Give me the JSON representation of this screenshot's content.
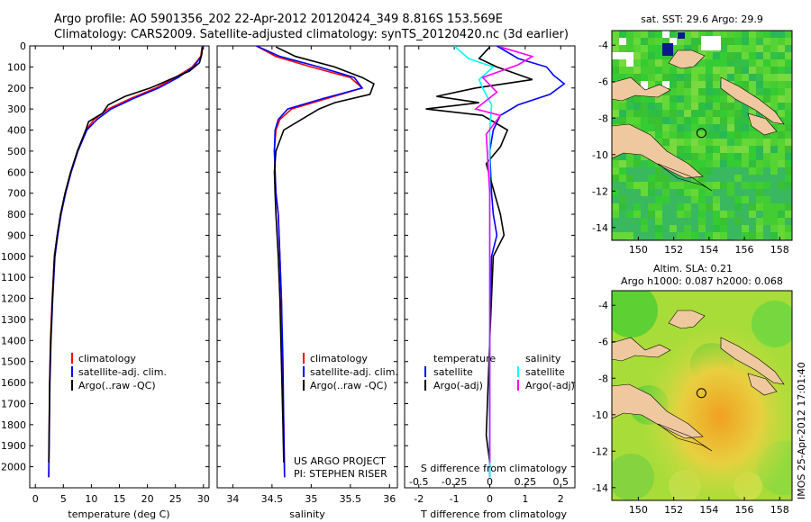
{
  "header": {
    "line1": "Argo profile: AO 5901356_202 22-Apr-2012 20120424_349 8.816S 153.569E",
    "line2": "Climatology: CARS2009. Satellite-adjusted climatology: synTS_20120420.nc (3d earlier)"
  },
  "colors": {
    "climatology": "#ff0000",
    "satellite": "#0000ff",
    "argo": "#000000",
    "sal_satellite": "#00ffff",
    "sal_argo": "#ff00ff",
    "land": "#f0c8a0",
    "ocean_green": "#33cc33"
  },
  "chart_data": [
    {
      "id": "temperature",
      "type": "line",
      "xlabel": "temperature (deg C)",
      "ylabel": "",
      "xlim": [
        -1,
        31
      ],
      "ylim": [
        2100,
        0
      ],
      "xticks": [
        "0",
        "5",
        "10",
        "15",
        "20",
        "25",
        "30"
      ],
      "xtick_values": [
        0,
        5,
        10,
        15,
        20,
        25,
        30
      ],
      "yticks": [
        "0",
        "100",
        "200",
        "300",
        "400",
        "500",
        "600",
        "700",
        "800",
        "900",
        "1000",
        "1100",
        "1200",
        "1300",
        "1400",
        "1500",
        "1600",
        "1700",
        "1800",
        "1900",
        "2000"
      ],
      "ytick_values": [
        0,
        100,
        200,
        300,
        400,
        500,
        600,
        700,
        800,
        900,
        1000,
        1100,
        1200,
        1300,
        1400,
        1500,
        1600,
        1700,
        1800,
        1900,
        2000
      ],
      "legend": [
        "climatology",
        "satellite-adj. clim.",
        "Argo(..raw -QC)"
      ],
      "series": [
        {
          "name": "climatology",
          "color": "#ff0000",
          "x": [
            29.8,
            29.5,
            28,
            25,
            21.5,
            17,
            13,
            10.5,
            9,
            7.5,
            6.3,
            5.3,
            4.5,
            3.9,
            3.4,
            3,
            2.7,
            2.55,
            2.4
          ],
          "y": [
            0,
            50,
            100,
            150,
            200,
            250,
            300,
            350,
            400,
            500,
            600,
            700,
            800,
            900,
            1000,
            1200,
            1400,
            1600,
            2050
          ]
        },
        {
          "name": "satellite-adj. clim.",
          "color": "#0000ff",
          "x": [
            29.9,
            29.6,
            28.2,
            25.5,
            22,
            17.5,
            13.5,
            11,
            9.2,
            7.6,
            6.4,
            5.4,
            4.6,
            4,
            3.5,
            3.1,
            2.8,
            2.6,
            2.4
          ],
          "y": [
            0,
            50,
            100,
            150,
            200,
            250,
            300,
            350,
            400,
            500,
            600,
            700,
            800,
            900,
            1000,
            1200,
            1400,
            1600,
            2050
          ]
        },
        {
          "name": "Argo(..raw -QC)",
          "color": "#000000",
          "x": [
            29.8,
            29.7,
            29.3,
            27.5,
            24,
            20.5,
            16,
            13,
            12,
            9.5,
            9,
            7.5,
            6.3,
            5.3,
            4.5,
            3.9,
            3.4,
            3.05,
            2.75,
            2.55,
            2.4
          ],
          "y": [
            5,
            40,
            80,
            120,
            160,
            200,
            240,
            280,
            320,
            360,
            400,
            500,
            600,
            700,
            800,
            900,
            1000,
            1200,
            1400,
            1600,
            1980
          ]
        }
      ]
    },
    {
      "id": "salinity",
      "type": "line",
      "xlabel": "salinity",
      "ylabel": "",
      "xlim": [
        33.8,
        36.1
      ],
      "ylim": [
        2100,
        0
      ],
      "xticks": [
        "34",
        "34.5",
        "35",
        "35.5",
        "36"
      ],
      "xtick_values": [
        34,
        34.5,
        35,
        35.5,
        36
      ],
      "legend": [
        "climatology",
        "satellite-adj. clim.",
        "Argo(..raw -QC)"
      ],
      "annotation": [
        "US ARGO PROJECT",
        "PI: STEPHEN RISER"
      ],
      "series": [
        {
          "name": "climatology",
          "color": "#ff0000",
          "x": [
            34.3,
            34.55,
            35.0,
            35.5,
            35.65,
            35.2,
            34.75,
            34.6,
            34.55,
            34.53,
            34.54,
            34.55,
            34.58,
            34.6,
            34.62,
            34.63,
            34.65,
            34.66
          ],
          "y": [
            0,
            50,
            100,
            150,
            200,
            250,
            300,
            350,
            400,
            500,
            600,
            700,
            800,
            1000,
            1200,
            1500,
            1800,
            2050
          ]
        },
        {
          "name": "satellite-adj. clim.",
          "color": "#0000ff",
          "x": [
            34.3,
            34.6,
            35.1,
            35.55,
            35.65,
            35.15,
            34.7,
            34.58,
            34.54,
            34.53,
            34.54,
            34.55,
            34.58,
            34.6,
            34.62,
            34.64,
            34.65,
            34.66
          ],
          "y": [
            0,
            50,
            100,
            150,
            200,
            250,
            300,
            350,
            400,
            500,
            600,
            700,
            800,
            1000,
            1200,
            1500,
            1800,
            2050
          ]
        },
        {
          "name": "Argo(..raw -QC)",
          "color": "#000000",
          "x": [
            34.55,
            34.8,
            35.3,
            35.65,
            35.8,
            35.75,
            35.3,
            35.1,
            34.65,
            34.55,
            34.53,
            34.54,
            34.55,
            34.58,
            34.6,
            34.62,
            34.64,
            34.65
          ],
          "y": [
            5,
            50,
            100,
            150,
            180,
            230,
            270,
            300,
            400,
            500,
            600,
            700,
            800,
            1000,
            1200,
            1500,
            1800,
            1980
          ]
        }
      ]
    },
    {
      "id": "difference",
      "type": "line",
      "xlabel": "T difference from climatology",
      "xlabel_top": "S difference from climatology",
      "xlim": [
        -2.4,
        2.4
      ],
      "ylim": [
        2100,
        0
      ],
      "xticks": [
        "-2",
        "-1",
        "0",
        "1",
        "2"
      ],
      "xtick_values": [
        -2,
        -1,
        0,
        1,
        2
      ],
      "s_ticks": [
        "-0.5",
        "-0.25",
        "0",
        "0.25",
        "0.5"
      ],
      "s_tick_values": [
        -0.5,
        -0.25,
        0,
        0.25,
        0.5
      ],
      "legend_left_title": "temperature",
      "legend_right_title": "salinity",
      "legend": [
        "satellite",
        "Argo(-adj)",
        "satellite",
        "Argo(-adj)"
      ],
      "series": [
        {
          "name": "satellite",
          "color": "#0000ff",
          "x": [
            0.2,
            0.8,
            1.6,
            1.8,
            2.1,
            1.7,
            0.8,
            0.3,
            0.1,
            0,
            0.05,
            0.1,
            0.2,
            0.05,
            0,
            0,
            0
          ],
          "y": [
            0,
            60,
            100,
            140,
            180,
            230,
            280,
            330,
            400,
            500,
            700,
            800,
            900,
            1000,
            1400,
            1800,
            2050
          ]
        },
        {
          "name": "Argo(-adj)",
          "color": "#000000",
          "x": [
            0,
            -0.3,
            0.2,
            1.2,
            -0.4,
            -1.5,
            -0.3,
            -1.8,
            -0.2,
            0.5,
            0.3,
            -0.1,
            0.3,
            0.4,
            0.1,
            0,
            -0.1,
            0
          ],
          "y": [
            5,
            60,
            100,
            160,
            200,
            240,
            270,
            300,
            330,
            400,
            480,
            560,
            800,
            900,
            1000,
            1400,
            1850,
            1980
          ]
        },
        {
          "name": "satellite",
          "color": "#00ffff",
          "x": [
            -1.0,
            -0.6,
            0.1,
            -0.3,
            -0.2,
            0.05,
            0,
            0,
            0
          ],
          "y": [
            0,
            60,
            100,
            160,
            200,
            280,
            400,
            1000,
            2050
          ]
        },
        {
          "name": "Argo(-adj)",
          "color": "#ff00ff",
          "x": [
            0.3,
            1.2,
            0.8,
            -0.2,
            0.2,
            -0.4,
            0.3,
            -0.1,
            0,
            0
          ],
          "y": [
            5,
            50,
            90,
            150,
            220,
            300,
            330,
            420,
            700,
            1980
          ]
        }
      ]
    },
    {
      "id": "map_sst",
      "type": "heatmap",
      "title": "sat. SST: 29.6 Argo: 29.9",
      "xlim": [
        148.5,
        158.7
      ],
      "ylim": [
        -14.7,
        -3.2
      ],
      "xticks": [
        "150",
        "152",
        "154",
        "156",
        "158"
      ],
      "xtick_values": [
        150,
        152,
        154,
        156,
        158
      ],
      "yticks": [
        "-4",
        "-6",
        "-8",
        "-10",
        "-12",
        "-14"
      ],
      "ytick_values": [
        -4,
        -6,
        -8,
        -10,
        -12,
        -14
      ],
      "argo_position": [
        153.569,
        -8.816
      ]
    },
    {
      "id": "map_sla",
      "type": "heatmap",
      "title_lines": [
        "Altim. SLA: 0.21",
        "Argo h1000: 0.087 h2000: 0.068"
      ],
      "xlim": [
        148.5,
        158.7
      ],
      "ylim": [
        -14.7,
        -3.2
      ],
      "xticks": [
        "150",
        "152",
        "154",
        "156",
        "158"
      ],
      "xtick_values": [
        150,
        152,
        154,
        156,
        158
      ],
      "yticks": [
        "-4",
        "-6",
        "-8",
        "-10",
        "-12",
        "-14"
      ],
      "ytick_values": [
        -4,
        -6,
        -8,
        -10,
        -12,
        -14
      ],
      "argo_position": [
        153.569,
        -8.816
      ]
    }
  ],
  "footer_stamp": "IMOS 25-Apr-2012 17:01:40"
}
